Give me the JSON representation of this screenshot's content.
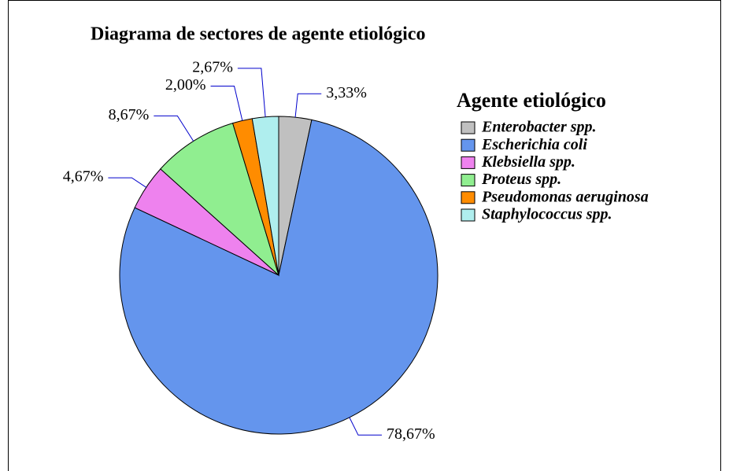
{
  "chart_data": {
    "type": "pie",
    "title": "Diagrama de sectores de agente etiológico",
    "legend_title": "Agente etiológico",
    "categories": [
      "Enterobacter spp.",
      "Escherichia coli",
      "Klebsiella spp.",
      "Proteus spp.",
      "Pseudomonas aeruginosa",
      "Staphylococcus spp."
    ],
    "values": [
      3.33,
      78.67,
      4.67,
      8.67,
      2.0,
      2.67
    ],
    "value_labels": [
      "3,33%",
      "78,67%",
      "4,67%",
      "8,67%",
      "2,00%",
      "2,67%"
    ],
    "colors": [
      "#c0c0c0",
      "#6495ed",
      "#ee82ee",
      "#90ee90",
      "#ff8c00",
      "#afeeee"
    ],
    "legend": "right"
  }
}
